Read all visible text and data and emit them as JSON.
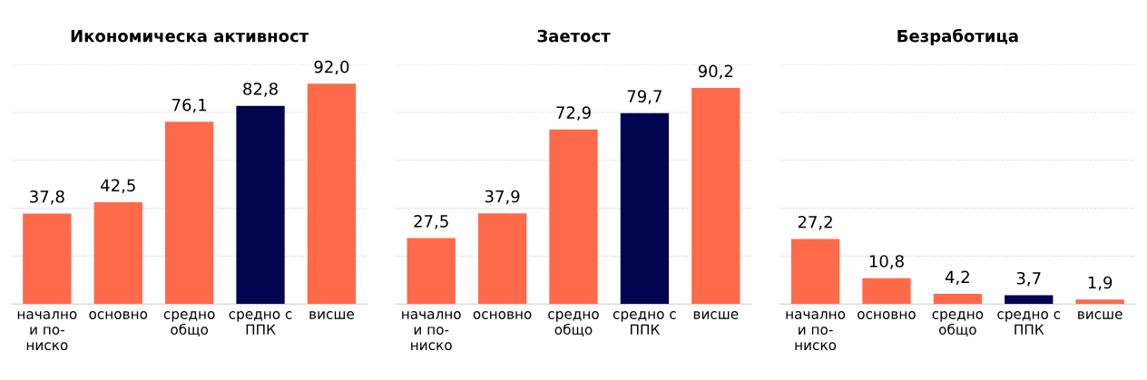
{
  "chart_data": [
    {
      "type": "bar",
      "title": "Икономическа активност",
      "categories": [
        "начално\nи по-\nниско",
        "основно",
        "средно\nобщо",
        "средно с\nППК",
        "висше"
      ],
      "values": [
        37.8,
        42.5,
        76.1,
        82.8,
        92.0
      ],
      "value_labels": [
        "37,8",
        "42,5",
        "76,1",
        "82,8",
        "92,0"
      ],
      "colors": [
        "#ff6a4a",
        "#ff6a4a",
        "#ff6a4a",
        "#03034f",
        "#ff6a4a"
      ],
      "ylim": [
        0,
        100
      ],
      "yticks": [
        {
          "value": 0,
          "label": null
        },
        {
          "value": 20,
          "label": null
        },
        {
          "value": 40,
          "label": null
        },
        {
          "value": 60,
          "label": null
        },
        {
          "value": 80,
          "label": null
        },
        {
          "value": 100,
          "label": null
        }
      ],
      "grid": "y",
      "tick_labels": "x"
    },
    {
      "type": "bar",
      "title": "Заетост",
      "categories": [
        "начално\nи по-\nниско",
        "основно",
        "средно\nобщо",
        "средно с\nППК",
        "висше"
      ],
      "values": [
        27.5,
        37.9,
        72.9,
        79.7,
        90.2
      ],
      "value_labels": [
        "27,5",
        "37,9",
        "72,9",
        "79,7",
        "90,2"
      ],
      "colors": [
        "#ff6a4a",
        "#ff6a4a",
        "#ff6a4a",
        "#03034f",
        "#ff6a4a"
      ],
      "ylim": [
        0,
        100
      ],
      "yticks": [
        {
          "value": 0,
          "label": null
        },
        {
          "value": 20,
          "label": null
        },
        {
          "value": 40,
          "label": null
        },
        {
          "value": 60,
          "label": null
        },
        {
          "value": 80,
          "label": null
        },
        {
          "value": 100,
          "label": null
        }
      ],
      "grid": "y",
      "tick_labels": "x"
    },
    {
      "type": "bar",
      "title": "Безработица",
      "categories": [
        "начално\nи по-\nниско",
        "основно",
        "средно\nобщо",
        "средно с\nППК",
        "висше"
      ],
      "values": [
        27.2,
        10.8,
        4.2,
        3.7,
        1.9
      ],
      "value_labels": [
        "27,2",
        "10,8",
        "4,2",
        "3,7",
        "1,9"
      ],
      "colors": [
        "#ff6a4a",
        "#ff6a4a",
        "#ff6a4a",
        "#03034f",
        "#ff6a4a"
      ],
      "ylim": [
        0,
        100
      ],
      "yticks": [
        {
          "value": 0,
          "label": null
        },
        {
          "value": 20,
          "label": null
        },
        {
          "value": 40,
          "label": null
        },
        {
          "value": 60,
          "label": null
        },
        {
          "value": 80,
          "label": null
        },
        {
          "value": 100,
          "label": null
        }
      ],
      "grid": "y",
      "tick_labels": "x"
    }
  ]
}
